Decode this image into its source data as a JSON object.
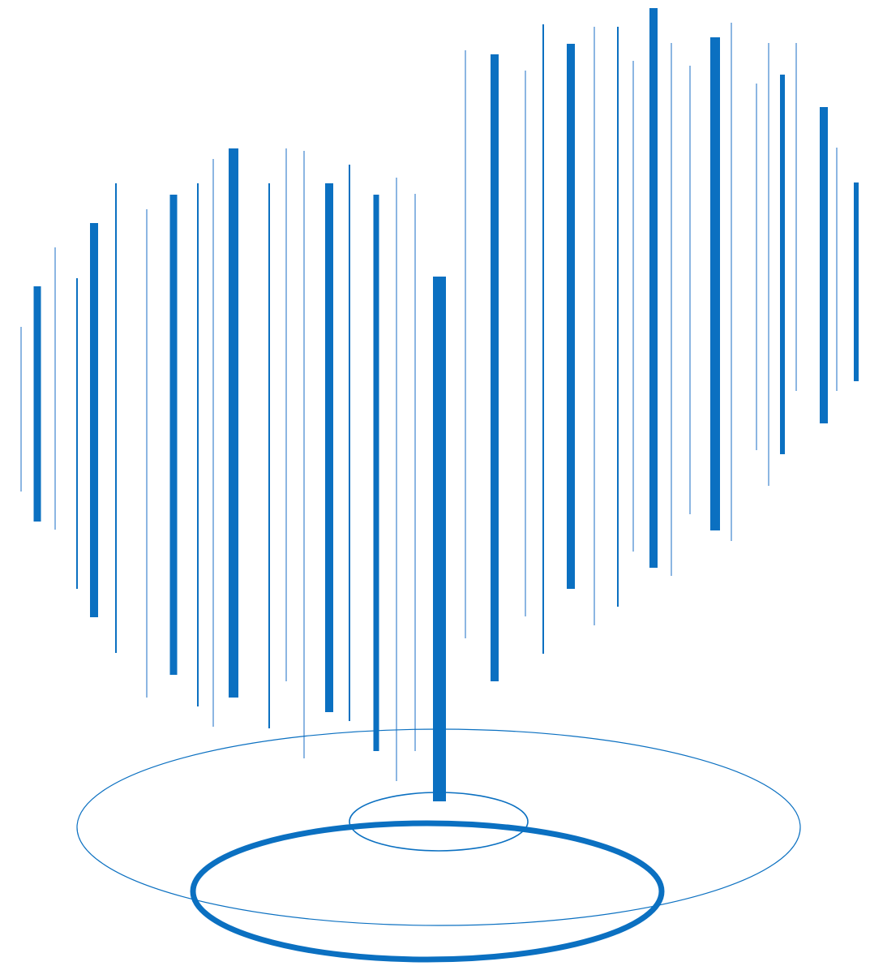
{
  "artwork": {
    "icon": "abstract-vertical-lines-with-rings-logo",
    "colors": {
      "primary_blue": "#0b70c1",
      "light_blue": "#3f86cf",
      "background": "#ffffff"
    }
  }
}
